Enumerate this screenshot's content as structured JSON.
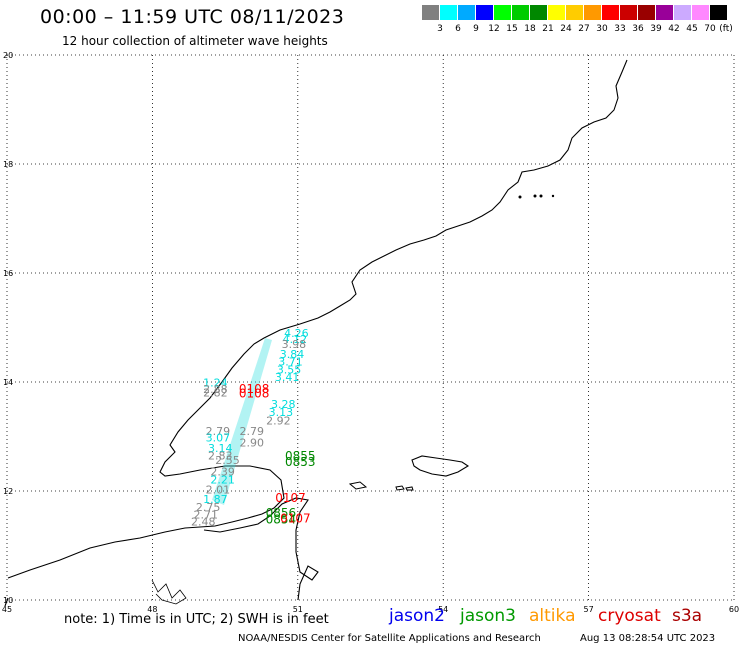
{
  "header": {
    "title": "00:00 – 11:59 UTC 08/11/2023",
    "subtitle": "12 hour collection of altimeter wave heights"
  },
  "color_scale": {
    "colors": [
      "#808080",
      "#00ffff",
      "#00aaff",
      "#0000ff",
      "#00ff00",
      "#00cc00",
      "#008800",
      "#ffff00",
      "#ffcc00",
      "#ff9900",
      "#ff0000",
      "#cc0000",
      "#990000",
      "#990099",
      "#ccaaff",
      "#ff88ff",
      "#000000"
    ],
    "labels": [
      "3",
      "6",
      "9",
      "12",
      "15",
      "18",
      "21",
      "24",
      "27",
      "30",
      "33",
      "36",
      "39",
      "42",
      "45",
      "70"
    ],
    "unit": "(ft)"
  },
  "map": {
    "lon_labels": [
      "45",
      "48",
      "51",
      "54",
      "57",
      "60"
    ],
    "lat_labels": [
      "20",
      "18",
      "16",
      "14",
      "12",
      "10"
    ],
    "observations": [
      {
        "text": "4.26",
        "lon": 50.97,
        "lat": 14.83,
        "color": "#00dddd"
      },
      {
        "text": "4.12",
        "lon": 50.94,
        "lat": 14.72,
        "color": "#00dddd"
      },
      {
        "text": "3.98",
        "lon": 50.92,
        "lat": 14.62,
        "color": "#888888"
      },
      {
        "text": "3.84",
        "lon": 50.88,
        "lat": 14.44,
        "color": "#00dddd"
      },
      {
        "text": "3.71",
        "lon": 50.85,
        "lat": 14.3,
        "color": "#00dddd"
      },
      {
        "text": "3.55",
        "lon": 50.82,
        "lat": 14.16,
        "color": "#00dddd"
      },
      {
        "text": "3.41",
        "lon": 50.78,
        "lat": 14.02,
        "color": "#00dddd"
      },
      {
        "text": "1.24",
        "lon": 49.3,
        "lat": 13.92,
        "color": "#00dddd"
      },
      {
        "text": "2.88",
        "lon": 49.3,
        "lat": 13.8,
        "color": "#888888"
      },
      {
        "text": "2.82",
        "lon": 49.3,
        "lat": 13.73,
        "color": "#888888"
      },
      {
        "text": "0108",
        "lon": 50.1,
        "lat": 13.8,
        "color": "#ff0000"
      },
      {
        "text": "0108",
        "lon": 50.1,
        "lat": 13.72,
        "color": "#ff0000"
      },
      {
        "text": "3.28",
        "lon": 50.7,
        "lat": 13.52,
        "color": "#00dddd"
      },
      {
        "text": "3.13",
        "lon": 50.65,
        "lat": 13.38,
        "color": "#00dddd"
      },
      {
        "text": "2.92",
        "lon": 50.6,
        "lat": 13.22,
        "color": "#888888"
      },
      {
        "text": "2.79",
        "lon": 49.35,
        "lat": 13.03,
        "color": "#888888"
      },
      {
        "text": "3.07",
        "lon": 49.35,
        "lat": 12.91,
        "color": "#00dddd"
      },
      {
        "text": "2.79",
        "lon": 50.05,
        "lat": 13.03,
        "color": "#888888"
      },
      {
        "text": "2.90",
        "lon": 50.05,
        "lat": 12.82,
        "color": "#888888"
      },
      {
        "text": "3.14",
        "lon": 49.4,
        "lat": 12.72,
        "color": "#00dddd"
      },
      {
        "text": "2.83",
        "lon": 49.4,
        "lat": 12.58,
        "color": "#888888"
      },
      {
        "text": "2.55",
        "lon": 49.55,
        "lat": 12.5,
        "color": "#888888"
      },
      {
        "text": "0855",
        "lon": 51.05,
        "lat": 12.57,
        "color": "#008800"
      },
      {
        "text": "0853",
        "lon": 51.05,
        "lat": 12.46,
        "color": "#008800"
      },
      {
        "text": "2.39",
        "lon": 49.45,
        "lat": 12.28,
        "color": "#888888"
      },
      {
        "text": "2.21",
        "lon": 49.45,
        "lat": 12.14,
        "color": "#00dddd"
      },
      {
        "text": "2.01",
        "lon": 49.35,
        "lat": 11.95,
        "color": "#888888"
      },
      {
        "text": "1.87",
        "lon": 49.3,
        "lat": 11.78,
        "color": "#00dddd"
      },
      {
        "text": "2.75",
        "lon": 49.15,
        "lat": 11.63,
        "color": "#888888"
      },
      {
        "text": "2.71",
        "lon": 49.1,
        "lat": 11.5,
        "color": "#888888"
      },
      {
        "text": "2.48",
        "lon": 49.05,
        "lat": 11.37,
        "color": "#888888"
      },
      {
        "text": "0107",
        "lon": 50.85,
        "lat": 11.8,
        "color": "#ff0000"
      },
      {
        "text": "0856",
        "lon": 50.65,
        "lat": 11.52,
        "color": "#008800"
      },
      {
        "text": "0854",
        "lon": 50.65,
        "lat": 11.4,
        "color": "#008800"
      },
      {
        "text": "0107",
        "lon": 50.95,
        "lat": 11.42,
        "color": "#ff0000"
      }
    ]
  },
  "footer": {
    "note": "note: 1) Time is in UTC; 2) SWH is in feet",
    "satellites": [
      {
        "name": "jason2",
        "color": "#0000ee"
      },
      {
        "name": "jason3",
        "color": "#009900"
      },
      {
        "name": "altika",
        "color": "#ff9900"
      },
      {
        "name": "cryosat",
        "color": "#dd0000"
      },
      {
        "name": "s3a",
        "color": "#aa0000"
      }
    ],
    "credit": "NOAA/NESDIS Center for Satellite Applications and Research",
    "timestamp": "Aug 13 08:28:54 UTC 2023"
  }
}
